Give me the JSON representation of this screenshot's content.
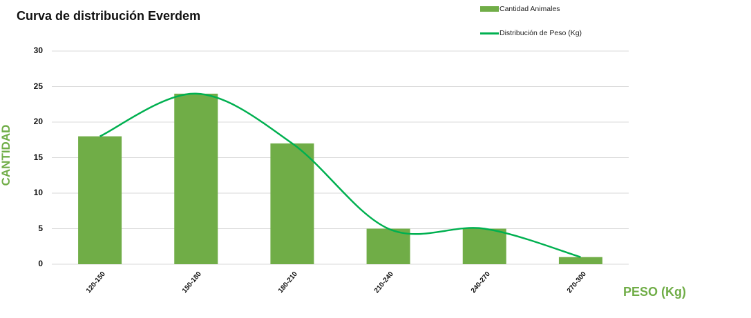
{
  "chart_data": {
    "type": "bar",
    "title": "Curva de distribución Everdem",
    "xlabel": "PESO (Kg)",
    "ylabel": "CANTIDAD",
    "ylim": [
      0,
      30
    ],
    "yticks": [
      0,
      5,
      10,
      15,
      20,
      25,
      30
    ],
    "grid": true,
    "legend_position": "top-right",
    "categories": [
      "120-150",
      "150-180",
      "180-210",
      "210-240",
      "240-270",
      "270-300"
    ],
    "series": [
      {
        "name": "Cantidad Animales",
        "type": "bar",
        "color": "#70ad47",
        "values": [
          18,
          24,
          17,
          5,
          5,
          1
        ]
      },
      {
        "name": "Distribución de Peso (Kg)",
        "type": "line",
        "smooth": true,
        "color": "#00b050",
        "values": [
          18,
          24,
          17,
          5,
          5,
          1
        ]
      }
    ]
  },
  "colors": {
    "bar": "#70ad47",
    "line": "#00b050",
    "grid": "#d9d9d9",
    "axis_title": "#70ad47"
  }
}
